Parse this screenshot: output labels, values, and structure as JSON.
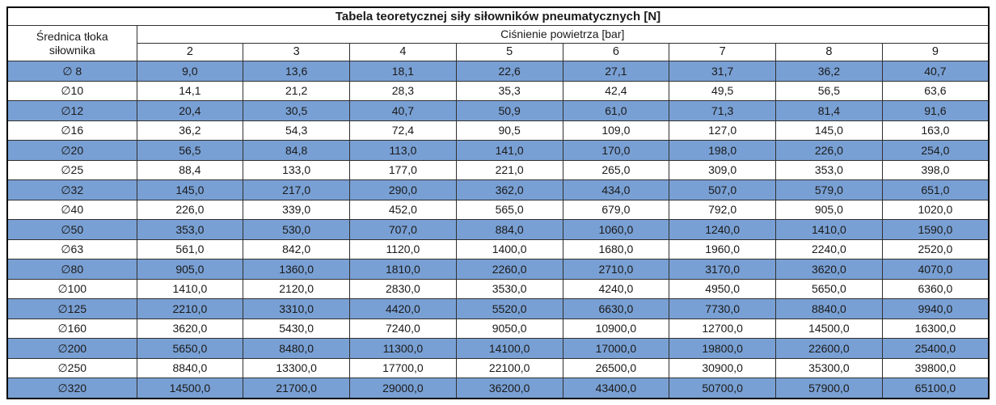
{
  "title": "Tabela teoretycznej siły siłowników pneumatycznych [N]",
  "colors": {
    "row_blue": "#79A0D4",
    "row_white": "#FFFFFF",
    "border_outer": "#000000",
    "border_inner": "#303030",
    "text": "#1A1A1A"
  },
  "table": {
    "corner_header_line1": "Średnica tłoka",
    "corner_header_line2": "siłownika",
    "pressure_header": "Ciśnienie powietrza [bar]",
    "pressure_columns": [
      "2",
      "3",
      "4",
      "5",
      "6",
      "7",
      "8",
      "9"
    ],
    "rows": [
      {
        "diameter": "∅ 8",
        "values": [
          "9,0",
          "13,6",
          "18,1",
          "22,6",
          "27,1",
          "31,7",
          "36,2",
          "40,7"
        ]
      },
      {
        "diameter": "∅10",
        "values": [
          "14,1",
          "21,2",
          "28,3",
          "35,3",
          "42,4",
          "49,5",
          "56,5",
          "63,6"
        ]
      },
      {
        "diameter": "∅12",
        "values": [
          "20,4",
          "30,5",
          "40,7",
          "50,9",
          "61,0",
          "71,3",
          "81,4",
          "91,6"
        ]
      },
      {
        "diameter": "∅16",
        "values": [
          "36,2",
          "54,3",
          "72,4",
          "90,5",
          "109,0",
          "127,0",
          "145,0",
          "163,0"
        ]
      },
      {
        "diameter": "∅20",
        "values": [
          "56,5",
          "84,8",
          "113,0",
          "141,0",
          "170,0",
          "198,0",
          "226,0",
          "254,0"
        ]
      },
      {
        "diameter": "∅25",
        "values": [
          "88,4",
          "133,0",
          "177,0",
          "221,0",
          "265,0",
          "309,0",
          "353,0",
          "398,0"
        ]
      },
      {
        "diameter": "∅32",
        "values": [
          "145,0",
          "217,0",
          "290,0",
          "362,0",
          "434,0",
          "507,0",
          "579,0",
          "651,0"
        ]
      },
      {
        "diameter": "∅40",
        "values": [
          "226,0",
          "339,0",
          "452,0",
          "565,0",
          "679,0",
          "792,0",
          "905,0",
          "1020,0"
        ]
      },
      {
        "diameter": "∅50",
        "values": [
          "353,0",
          "530,0",
          "707,0",
          "884,0",
          "1060,0",
          "1240,0",
          "1410,0",
          "1590,0"
        ]
      },
      {
        "diameter": "∅63",
        "values": [
          "561,0",
          "842,0",
          "1120,0",
          "1400,0",
          "1680,0",
          "1960,0",
          "2240,0",
          "2520,0"
        ]
      },
      {
        "diameter": "∅80",
        "values": [
          "905,0",
          "1360,0",
          "1810,0",
          "2260,0",
          "2710,0",
          "3170,0",
          "3620,0",
          "4070,0"
        ]
      },
      {
        "diameter": "∅100",
        "values": [
          "1410,0",
          "2120,0",
          "2830,0",
          "3530,0",
          "4240,0",
          "4950,0",
          "5650,0",
          "6360,0"
        ]
      },
      {
        "diameter": "∅125",
        "values": [
          "2210,0",
          "3310,0",
          "4420,0",
          "5520,0",
          "6630,0",
          "7730,0",
          "8840,0",
          "9940,0"
        ]
      },
      {
        "diameter": "∅160",
        "values": [
          "3620,0",
          "5430,0",
          "7240,0",
          "9050,0",
          "10900,0",
          "12700,0",
          "14500,0",
          "16300,0"
        ]
      },
      {
        "diameter": "∅200",
        "values": [
          "5650,0",
          "8480,0",
          "11300,0",
          "14100,0",
          "17000,0",
          "19800,0",
          "22600,0",
          "25400,0"
        ]
      },
      {
        "diameter": "∅250",
        "values": [
          "8840,0",
          "13300,0",
          "17700,0",
          "22100,0",
          "26500,0",
          "30900,0",
          "35300,0",
          "39800,0"
        ]
      },
      {
        "diameter": "∅320",
        "values": [
          "14500,0",
          "21700,0",
          "29000,0",
          "36200,0",
          "43400,0",
          "50700,0",
          "57900,0",
          "65100,0"
        ]
      }
    ]
  }
}
